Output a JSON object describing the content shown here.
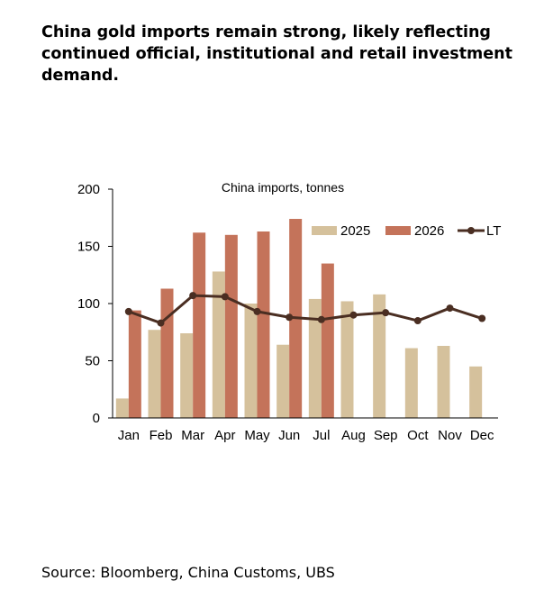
{
  "headline": "China gold imports remain strong, likely reflecting continued official, institutional and retail investment demand.",
  "source": "Source: Bloomberg, China Customs, UBS",
  "chart_data": {
    "type": "bar",
    "title": "China imports, tonnes",
    "categories": [
      "Jan",
      "Feb",
      "Mar",
      "Apr",
      "May",
      "Jun",
      "Jul",
      "Aug",
      "Sep",
      "Oct",
      "Nov",
      "Dec"
    ],
    "ylim": [
      0,
      200
    ],
    "yticks": [
      0,
      50,
      100,
      150,
      200
    ],
    "grid": false,
    "legend_position": "top-right",
    "series": [
      {
        "name": "2025",
        "kind": "bar",
        "color": "#d5c19c",
        "values": [
          17,
          77,
          74,
          128,
          100,
          64,
          104,
          102,
          108,
          61,
          63,
          45
        ]
      },
      {
        "name": "2026",
        "kind": "bar",
        "color": "#c4735a",
        "values": [
          94,
          113,
          162,
          160,
          163,
          174,
          135,
          null,
          null,
          null,
          null,
          null
        ]
      },
      {
        "name": "LT",
        "kind": "line",
        "color": "#4a2e22",
        "values": [
          93,
          83,
          107,
          106,
          93,
          88,
          86,
          90,
          92,
          85,
          96,
          87
        ]
      }
    ]
  }
}
